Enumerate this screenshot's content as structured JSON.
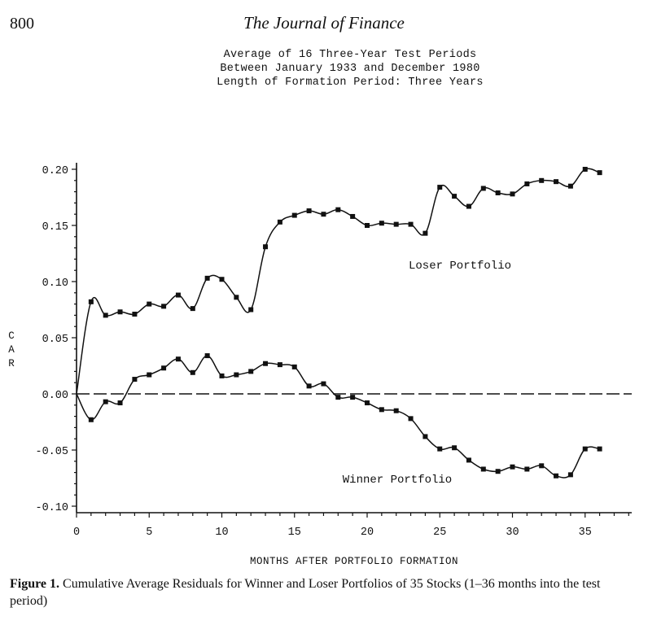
{
  "header": {
    "page_number": "800",
    "journal": "The Journal of Finance"
  },
  "chart_titles": [
    "Average of 16 Three-Year Test Periods",
    "Between January 1933 and December 1980",
    "Length of Formation Period:  Three Years"
  ],
  "caption": {
    "label": "Figure 1.",
    "text": "Cumulative Average Residuals for Winner and Loser Portfolios of 35 Stocks (1–36 months into the test period)"
  },
  "chart_data": {
    "type": "line",
    "xlabel": "MONTHS AFTER PORTFOLIO FORMATION",
    "ylabel": "CAR",
    "xlim": [
      0,
      38
    ],
    "ylim": [
      -0.1,
      0.2
    ],
    "xticks": [
      "0",
      "5",
      "10",
      "15",
      "20",
      "25",
      "30",
      "35"
    ],
    "yticks": [
      "0.20",
      "0.15",
      "0.10",
      "0.05",
      "0.00",
      "-0.05",
      "-0.10"
    ],
    "grid": false,
    "zero_line": true,
    "series": [
      {
        "name": "Loser Portfolio",
        "x": [
          0,
          1,
          2,
          3,
          4,
          5,
          6,
          7,
          8,
          9,
          10,
          11,
          12,
          13,
          14,
          15,
          16,
          17,
          18,
          19,
          20,
          21,
          22,
          23,
          24,
          25,
          26,
          27,
          28,
          29,
          30,
          31,
          32,
          33,
          34,
          35,
          36
        ],
        "values": [
          0.0,
          0.082,
          0.07,
          0.073,
          0.071,
          0.08,
          0.078,
          0.088,
          0.076,
          0.103,
          0.102,
          0.086,
          0.075,
          0.131,
          0.153,
          0.159,
          0.163,
          0.16,
          0.164,
          0.158,
          0.15,
          0.152,
          0.151,
          0.151,
          0.143,
          0.184,
          0.176,
          0.167,
          0.183,
          0.179,
          0.178,
          0.187,
          0.19,
          0.189,
          0.185,
          0.2,
          0.197
        ]
      },
      {
        "name": "Winner Portfolio",
        "x": [
          0,
          1,
          2,
          3,
          4,
          5,
          6,
          7,
          8,
          9,
          10,
          11,
          12,
          13,
          14,
          15,
          16,
          17,
          18,
          19,
          20,
          21,
          22,
          23,
          24,
          25,
          26,
          27,
          28,
          29,
          30,
          31,
          32,
          33,
          34,
          35,
          36
        ],
        "values": [
          0.0,
          -0.023,
          -0.007,
          -0.008,
          0.013,
          0.017,
          0.023,
          0.031,
          0.019,
          0.034,
          0.016,
          0.017,
          0.02,
          0.027,
          0.026,
          0.024,
          0.007,
          0.009,
          -0.003,
          -0.003,
          -0.008,
          -0.014,
          -0.015,
          -0.022,
          -0.038,
          -0.049,
          -0.048,
          -0.059,
          -0.067,
          -0.069,
          -0.065,
          -0.067,
          -0.064,
          -0.073,
          -0.072,
          -0.049,
          -0.049
        ]
      }
    ]
  }
}
